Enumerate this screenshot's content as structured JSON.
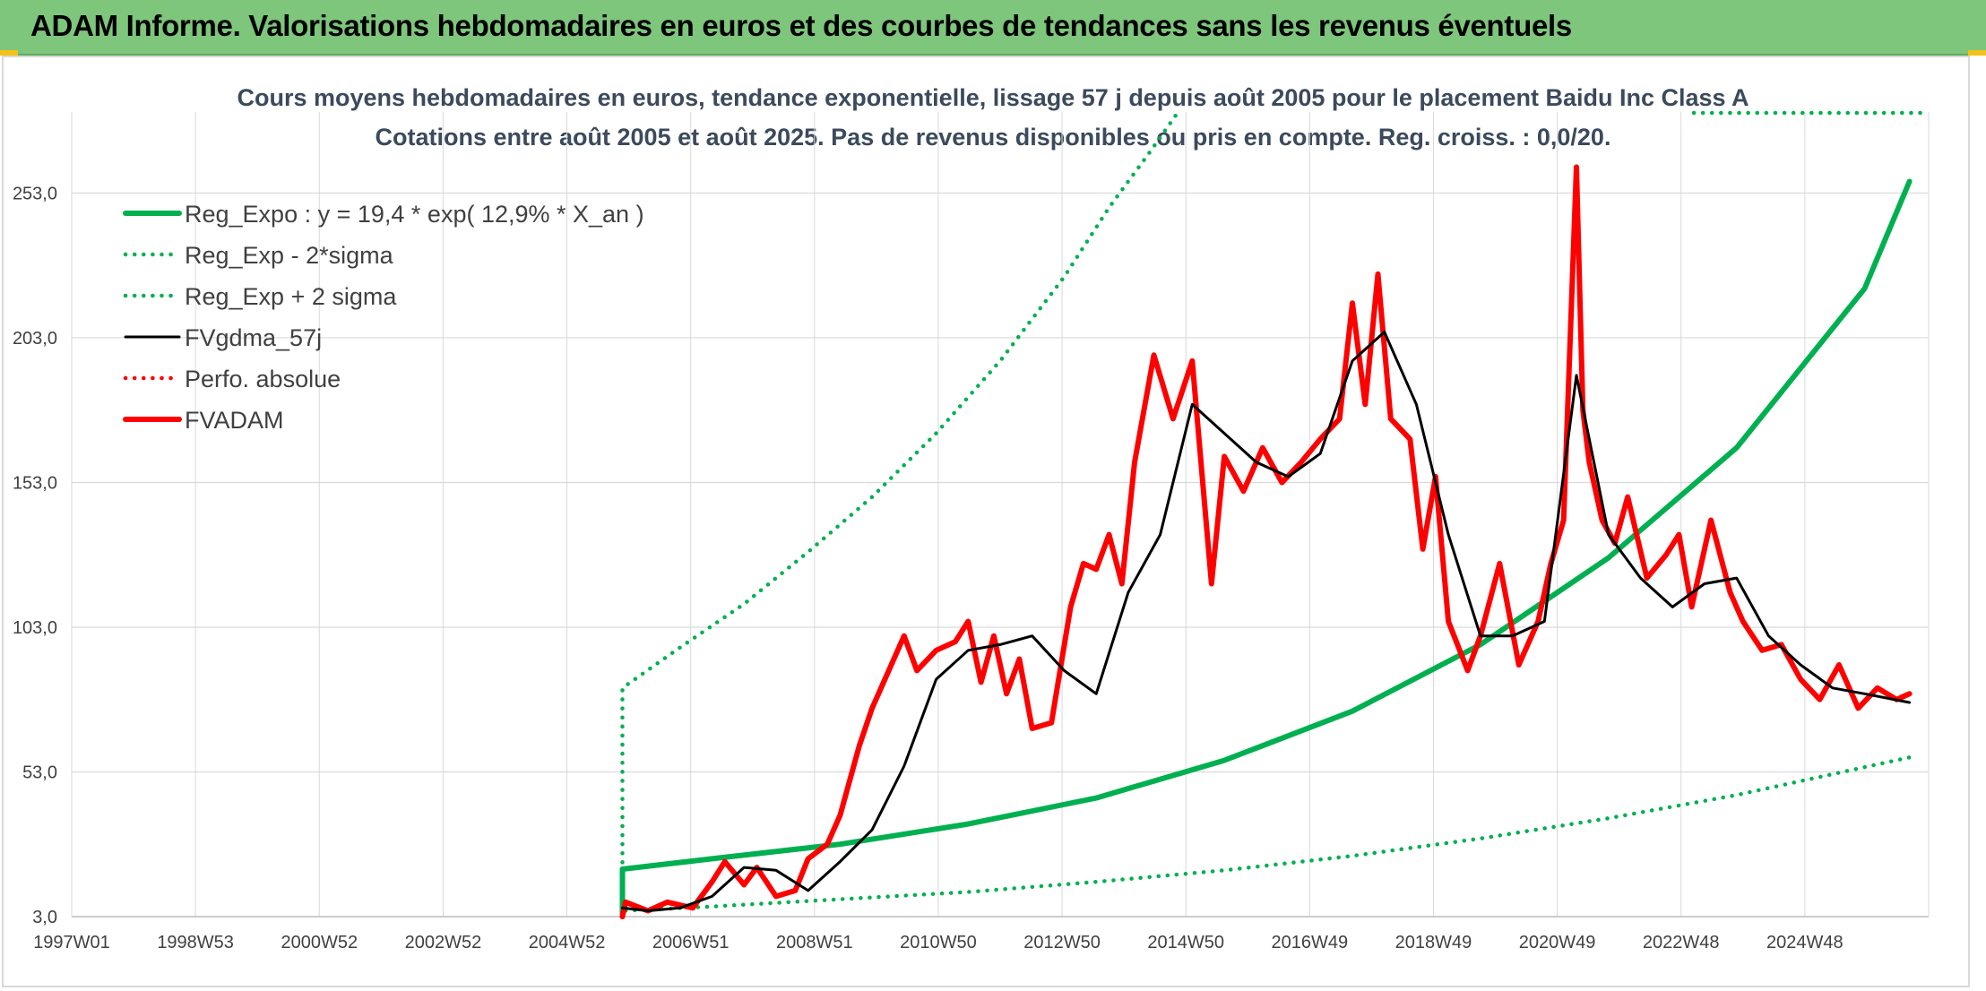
{
  "banner": {
    "title": "ADAM Informe. Valorisations hebdomadaires en euros et des courbes de tendances sans les revenus éventuels"
  },
  "colors": {
    "banner_bg": "#7dc67b",
    "reg_expo": "#00b050",
    "fvadam": "#ff0000",
    "fvgdma": "#000000",
    "grid": "#d9d9d9"
  },
  "chart_data": {
    "type": "line",
    "title": "Cours moyens hebdomadaires en euros, tendance exponentielle, lissage 57 j depuis août 2005 pour le placement Baidu Inc Class A",
    "subtitle": "Cotations entre août 2005 et août 2025. Pas de revenus disponibles ou pris en compte. Reg. croiss. : 0,0/20.",
    "x_ticks": [
      "1997W01",
      "1998W53",
      "2000W52",
      "2002W52",
      "2004W52",
      "2006W51",
      "2008W51",
      "2010W50",
      "2012W50",
      "2014W50",
      "2016W49",
      "2018W49",
      "2020W49",
      "2022W48",
      "2024W48"
    ],
    "xlim": [
      1997.0,
      2026.0
    ],
    "y_ticks": [
      "3,0",
      "53,0",
      "103,0",
      "153,0",
      "203,0",
      "253,0"
    ],
    "ylim": [
      3,
      281
    ],
    "grid": true,
    "legend_position": "top-left",
    "legend": [
      {
        "label": "Reg_Expo : y = 19,4 * exp( 12,9% *  X_an )",
        "style": "solid-thick",
        "color": "#00b050"
      },
      {
        "label": "Reg_Exp - 2*sigma",
        "style": "dotted",
        "color": "#00b050"
      },
      {
        "label": "Reg_Exp + 2 sigma",
        "style": "dotted",
        "color": "#00b050"
      },
      {
        "label": "FVgdma_57j",
        "style": "solid",
        "color": "#000000"
      },
      {
        "label": "Perfo. absolue",
        "style": "dotted",
        "color": "#ff0000"
      },
      {
        "label": "FVADAM",
        "style": "solid-thick",
        "color": "#ff0000"
      }
    ],
    "series": [
      {
        "name": "Reg_Expo : y = 19,4 * exp( 12,9% *  X_an )",
        "x": [
          2005.6,
          2007,
          2009,
          2011,
          2013,
          2015,
          2017,
          2019,
          2021,
          2023,
          2025.0,
          2025.7
        ],
        "y": [
          19.4,
          23,
          28,
          35,
          44,
          57,
          74,
          97,
          127,
          165,
          220,
          257
        ]
      },
      {
        "name": "Reg_Exp - 2*sigma",
        "x": [
          2005.6,
          2007,
          2009,
          2011,
          2013,
          2015,
          2017,
          2019,
          2021,
          2023,
          2025.7
        ],
        "y": [
          5,
          6.5,
          9,
          11.5,
          15,
          19,
          24,
          30,
          37,
          45,
          58
        ]
      },
      {
        "name": "Reg_Exp + 2 sigma",
        "x": [
          2005.6,
          2006.5,
          2007.5,
          2008.5,
          2009.5,
          2010.5,
          2011.5,
          2012.5,
          2013.2,
          2013.8,
          2014.28
        ],
        "y": [
          82,
          96,
          111,
          129,
          148,
          170,
          195,
          224,
          248,
          266,
          281
        ]
      },
      {
        "name": "FVgdma_57j",
        "x": [
          2005.6,
          2006,
          2006.5,
          2007,
          2007.5,
          2008,
          2008.5,
          2009,
          2009.5,
          2010,
          2010.5,
          2011,
          2011.5,
          2012,
          2012.5,
          2013,
          2013.5,
          2014,
          2014.5,
          2015,
          2015.5,
          2016,
          2016.5,
          2017,
          2017.5,
          2018,
          2018.5,
          2019,
          2019.5,
          2020,
          2020.5,
          2021,
          2021.5,
          2022,
          2022.5,
          2023,
          2023.5,
          2024,
          2024.5,
          2025,
          2025.7
        ],
        "y": [
          6,
          5,
          6,
          10,
          20,
          19,
          12,
          22,
          33,
          55,
          85,
          95,
          97,
          100,
          88,
          80,
          115,
          135,
          180,
          170,
          160,
          155,
          163,
          195,
          205,
          180,
          135,
          100,
          100,
          105,
          190,
          135,
          120,
          110,
          118,
          120,
          100,
          90,
          82,
          80,
          77
        ]
      },
      {
        "name": "FVADAM",
        "x": [
          2005.6,
          2005.65,
          2006,
          2006.3,
          2006.7,
          2007,
          2007.2,
          2007.5,
          2007.7,
          2008,
          2008.3,
          2008.5,
          2008.8,
          2009,
          2009.3,
          2009.5,
          2009.7,
          2010,
          2010.2,
          2010.5,
          2010.8,
          2011,
          2011.2,
          2011.4,
          2011.6,
          2011.8,
          2012,
          2012.3,
          2012.6,
          2012.8,
          2013,
          2013.2,
          2013.4,
          2013.6,
          2013.9,
          2014.2,
          2014.5,
          2014.8,
          2015,
          2015.3,
          2015.6,
          2015.9,
          2016.2,
          2016.5,
          2016.8,
          2017,
          2017.2,
          2017.4,
          2017.6,
          2017.9,
          2018.1,
          2018.3,
          2018.5,
          2018.8,
          2019,
          2019.3,
          2019.6,
          2019.9,
          2020.1,
          2020.3,
          2020.5,
          2020.6,
          2020.7,
          2020.9,
          2021.1,
          2021.3,
          2021.6,
          2021.9,
          2022.1,
          2022.3,
          2022.6,
          2022.9,
          2023.1,
          2023.4,
          2023.7,
          2024,
          2024.3,
          2024.6,
          2024.9,
          2025.2,
          2025.5,
          2025.7
        ],
        "y": [
          3,
          8,
          5,
          8,
          6,
          15,
          22,
          14,
          20,
          10,
          12,
          23,
          28,
          38,
          62,
          75,
          85,
          100,
          88,
          95,
          98,
          105,
          84,
          100,
          80,
          92,
          68,
          70,
          110,
          125,
          123,
          135,
          118,
          160,
          197,
          175,
          195,
          118,
          162,
          150,
          165,
          153,
          160,
          168,
          175,
          215,
          180,
          225,
          175,
          168,
          130,
          155,
          105,
          88,
          100,
          125,
          90,
          105,
          125,
          140,
          262,
          178,
          160,
          140,
          132,
          148,
          120,
          128,
          135,
          110,
          140,
          115,
          105,
          95,
          97,
          85,
          78,
          90,
          75,
          82,
          78,
          80
        ]
      }
    ]
  }
}
